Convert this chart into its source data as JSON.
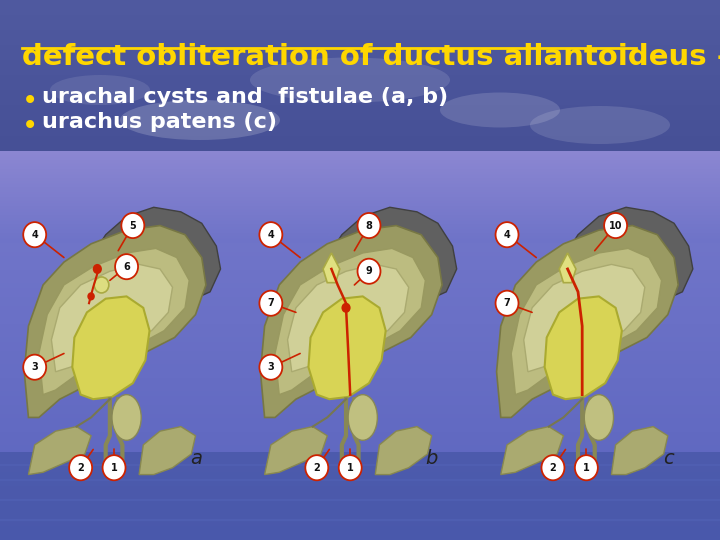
{
  "title_text": "defect obliteration of ductus allantoideus",
  "title_dash": " –",
  "title_color": "#FFD700",
  "title_underline_color": "#FFD700",
  "title_fontsize": 21,
  "bullet_color": "#FFD700",
  "bullet1": "urachal cysts and  fistulae (a, b)",
  "bullet2": "urachus patens (c)",
  "bullet_fontsize": 16,
  "bullet_text_color": "#FFFFFF",
  "sky_color_top": "#7080C8",
  "sky_color_mid": "#8090CC",
  "sky_color_bot": "#5566AA",
  "water_color": "#4455AA",
  "panel_bg": "#F5F5E8",
  "panel_border": "#AAAAAA",
  "panel_labels": [
    "a",
    "b",
    "c"
  ],
  "panel_label_fontsize": 14,
  "red": "#CC2200",
  "dark_gray": "#555555",
  "olive_dark": "#888860",
  "olive_mid": "#AAAA70",
  "olive_light": "#C8C88A",
  "cream": "#E0E090",
  "yellow_struct": "#D8D060",
  "tan": "#B8B878"
}
